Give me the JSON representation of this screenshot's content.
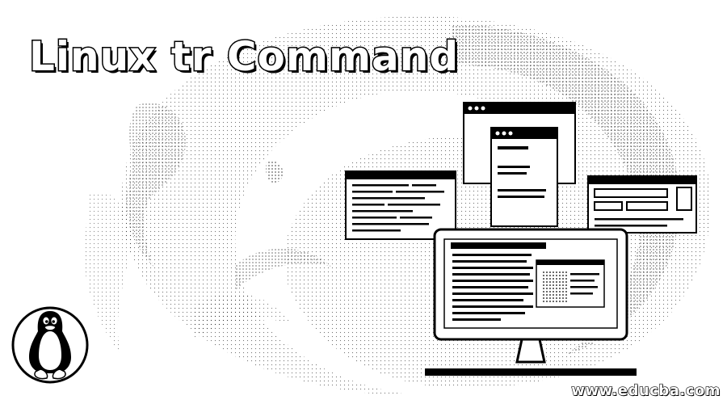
{
  "banner": {
    "title": "Linux tr Command",
    "watermark": "www.educba.com"
  },
  "illustration": {
    "icons": [
      "tux-penguin-icon",
      "desktop-monitor-icon",
      "code-window-icon",
      "browser-window-icon"
    ],
    "colors": {
      "ink": "#000000",
      "paper": "#ffffff",
      "stipple": "#9a9a9a"
    }
  }
}
